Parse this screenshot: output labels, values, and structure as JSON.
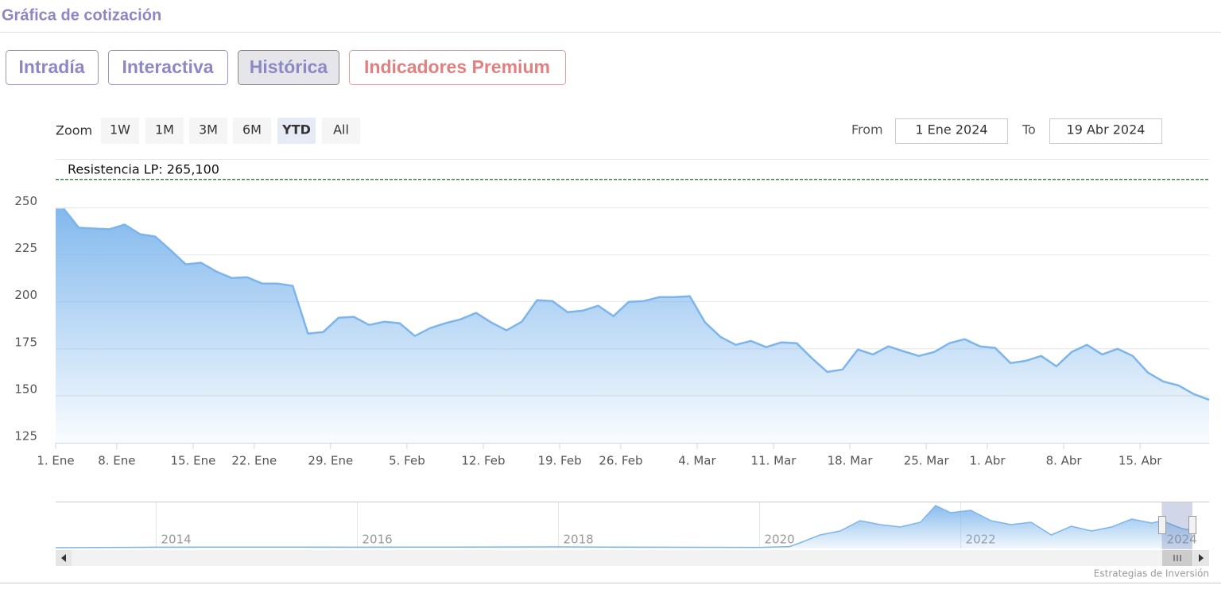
{
  "header": {
    "title": "Gráfica de cotización"
  },
  "tabs": [
    "Intradía",
    "Interactiva",
    "Histórica",
    "Indicadores Premium"
  ],
  "range_selector": {
    "zoom_label": "Zoom",
    "buttons": [
      "1W",
      "1M",
      "3M",
      "6M",
      "YTD",
      "All"
    ],
    "from_label": "From",
    "from": "1 Ene 2024",
    "to_label": "To",
    "to": "19 Abr 2024"
  },
  "chart_data": {
    "type": "area",
    "categories": [
      "1. Ene",
      null,
      null,
      null,
      "8. Ene",
      null,
      null,
      null,
      null,
      "15. Ene",
      null,
      null,
      null,
      "22. Ene",
      null,
      null,
      null,
      null,
      "29. Ene",
      null,
      null,
      null,
      null,
      "5. Feb",
      null,
      null,
      null,
      null,
      "12. Feb",
      null,
      null,
      null,
      null,
      "19. Feb",
      null,
      null,
      null,
      "26. Feb",
      null,
      null,
      null,
      null,
      "4. Mar",
      null,
      null,
      null,
      null,
      "11. Mar",
      null,
      null,
      null,
      null,
      "18. Mar",
      null,
      null,
      null,
      null,
      "25. Mar",
      null,
      null,
      null,
      "1. Abr",
      null,
      null,
      null,
      null,
      "8. Abr",
      null,
      null,
      null,
      null,
      "15. Abr",
      null,
      null,
      null,
      null
    ],
    "values": [
      249.6,
      239.4,
      239.0,
      238.6,
      241.1,
      236.0,
      234.7,
      227.5,
      219.9,
      220.8,
      216.1,
      212.7,
      213.1,
      209.7,
      209.7,
      208.5,
      183.1,
      183.9,
      191.5,
      192.0,
      187.7,
      189.4,
      188.6,
      181.8,
      186.0,
      188.6,
      190.7,
      194.1,
      189.0,
      184.8,
      189.4,
      200.9,
      200.4,
      194.5,
      195.3,
      197.9,
      192.4,
      200.0,
      200.4,
      202.5,
      202.5,
      203.0,
      189.0,
      181.4,
      177.1,
      179.2,
      175.9,
      178.4,
      178.0,
      169.9,
      162.7,
      164.0,
      174.6,
      172.0,
      176.3,
      173.7,
      171.2,
      173.3,
      178.0,
      180.1,
      176.3,
      175.4,
      167.4,
      168.6,
      171.2,
      165.7,
      173.3,
      177.1,
      172.0,
      175.0,
      171.2,
      162.3,
      157.6,
      155.5,
      150.9,
      147.9
    ],
    "color": "#7cb5ec",
    "ylim": [
      125,
      276
    ],
    "yticks": [
      125,
      150,
      175,
      200,
      225,
      250
    ],
    "grid": true,
    "annotation": {
      "value": 265.1,
      "label": "Resistencia LP: 265,100",
      "color": "#1b6e2a"
    },
    "navigator": {
      "type": "area",
      "color": "#7cb5ec",
      "x": [
        2013.0,
        2014,
        2015,
        2016,
        2017,
        2018,
        2019,
        2020.0,
        2020.3,
        2020.4,
        2020.6,
        2020.8,
        2021.0,
        2021.2,
        2021.4,
        2021.6,
        2021.75,
        2021.9,
        2022.1,
        2022.3,
        2022.5,
        2022.7,
        2022.9,
        2023.1,
        2023.3,
        2023.5,
        2023.7,
        2023.9,
        2024.0,
        2024.2,
        2024.3
      ],
      "values": [
        5,
        8,
        9,
        8,
        9,
        10,
        8,
        7,
        12,
        35,
        85,
        110,
        175,
        150,
        135,
        165,
        270,
        225,
        240,
        175,
        150,
        165,
        85,
        140,
        110,
        135,
        185,
        160,
        175,
        125,
        115
      ],
      "xlim": [
        2013.0,
        2024.47
      ],
      "ylim": [
        0,
        290
      ],
      "xticks": [
        2014,
        2016,
        2018,
        2020,
        2022,
        2024
      ]
    }
  },
  "credit": "Estrategias de Inversión"
}
